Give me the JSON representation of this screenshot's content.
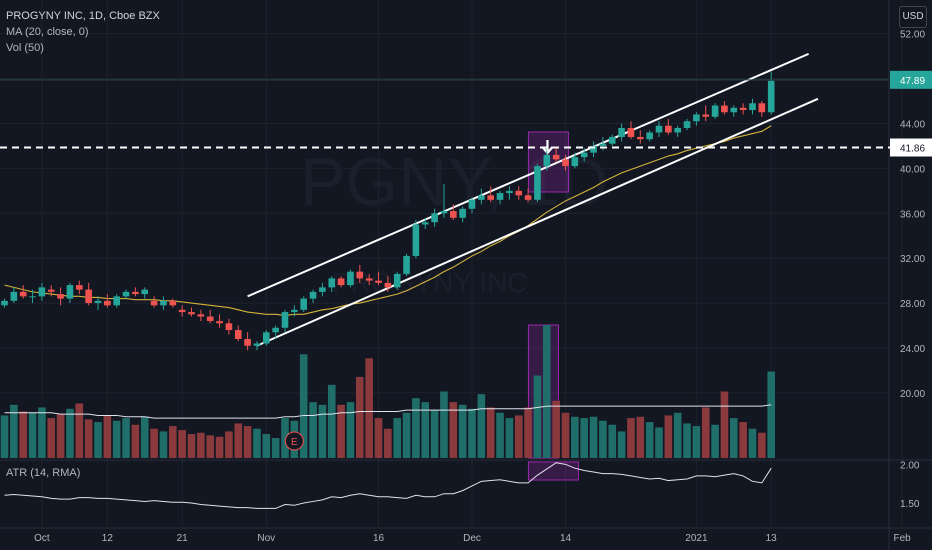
{
  "legend": {
    "title": "PROGYNY INC, 1D, Cboe BZX",
    "ma": "MA (20, close, 0)",
    "vol": "Vol (50)"
  },
  "atr_label": "ATR (14, RMA)",
  "currency": "USD",
  "watermark": {
    "symbol": "PGNY, 1D",
    "name": "PROGYNY INC"
  },
  "earnings_marker": "E",
  "colors": {
    "up": "#26a69a",
    "down": "#ef5350",
    "vol_up": "#1f6e6a",
    "vol_down": "#8a3a3c",
    "ma": "#d4b33a",
    "channel": "#ffffff",
    "highlight": "#9c27b0"
  },
  "price_levels": {
    "current": "47.89",
    "support": "41.86"
  },
  "chart_data": {
    "type": "candlestick",
    "y_ticks": [
      "52.00",
      "48.00",
      "44.00",
      "40.00",
      "36.00",
      "32.00",
      "28.00",
      "24.00",
      "20.00"
    ],
    "y_ticks_values": [
      52,
      48,
      44,
      40,
      36,
      32,
      28,
      24,
      20
    ],
    "ylim": [
      14.2,
      55
    ],
    "atr_ticks": [
      "2.00",
      "1.50"
    ],
    "atr_ticks_values": [
      2.0,
      1.5
    ],
    "atr_ylim": [
      1.28,
      2.03
    ],
    "x_ticks": [
      "Oct",
      "12",
      "21",
      "Nov",
      "16",
      "Dec",
      "14",
      "2021",
      "13",
      "Feb"
    ],
    "x_tick_index": [
      4,
      11,
      19,
      28,
      40,
      50,
      60,
      74,
      82,
      96
    ],
    "candles": [
      [
        27.8,
        28.4,
        27.6,
        28.2
      ],
      [
        28.2,
        29.4,
        28.0,
        29.0
      ],
      [
        29.0,
        29.6,
        28.4,
        28.6
      ],
      [
        28.6,
        29.2,
        28.0,
        28.6
      ],
      [
        28.6,
        29.8,
        28.2,
        29.4
      ],
      [
        29.2,
        29.6,
        28.6,
        29.0
      ],
      [
        28.8,
        29.4,
        27.8,
        28.4
      ],
      [
        28.4,
        29.8,
        28.0,
        29.6
      ],
      [
        29.6,
        30.0,
        28.8,
        29.2
      ],
      [
        29.2,
        29.8,
        27.8,
        28.0
      ],
      [
        28.0,
        28.6,
        27.4,
        28.2
      ],
      [
        28.2,
        28.8,
        27.6,
        27.8
      ],
      [
        27.8,
        28.8,
        27.6,
        28.6
      ],
      [
        28.6,
        29.2,
        28.4,
        29.0
      ],
      [
        29.0,
        29.4,
        28.6,
        28.8
      ],
      [
        28.8,
        29.4,
        28.4,
        29.2
      ],
      [
        28.2,
        28.6,
        27.6,
        27.8
      ],
      [
        27.8,
        28.6,
        27.4,
        28.2
      ],
      [
        28.2,
        28.4,
        27.6,
        27.8
      ],
      [
        27.4,
        27.8,
        26.8,
        27.2
      ],
      [
        27.2,
        27.6,
        26.8,
        27.0
      ],
      [
        27.0,
        27.4,
        26.4,
        26.8
      ],
      [
        26.8,
        27.4,
        26.2,
        26.4
      ],
      [
        26.4,
        27.0,
        25.8,
        26.2
      ],
      [
        26.2,
        26.6,
        25.2,
        25.6
      ],
      [
        25.6,
        26.0,
        24.6,
        24.8
      ],
      [
        24.8,
        25.4,
        23.8,
        24.2
      ],
      [
        24.2,
        24.6,
        23.8,
        24.4
      ],
      [
        24.4,
        25.6,
        24.2,
        25.4
      ],
      [
        25.4,
        26.0,
        24.8,
        25.8
      ],
      [
        25.8,
        27.4,
        25.4,
        27.2
      ],
      [
        27.2,
        27.8,
        26.8,
        27.4
      ],
      [
        27.4,
        28.6,
        27.2,
        28.4
      ],
      [
        28.4,
        29.2,
        28.0,
        29.0
      ],
      [
        29.0,
        29.8,
        28.6,
        29.4
      ],
      [
        29.4,
        30.4,
        29.0,
        30.2
      ],
      [
        30.2,
        30.4,
        29.4,
        29.6
      ],
      [
        29.6,
        31.0,
        29.4,
        30.8
      ],
      [
        30.8,
        31.4,
        29.8,
        30.2
      ],
      [
        30.2,
        30.6,
        29.6,
        30.0
      ],
      [
        30.0,
        30.8,
        29.6,
        29.8
      ],
      [
        29.8,
        30.4,
        29.0,
        29.4
      ],
      [
        29.4,
        30.8,
        29.2,
        30.6
      ],
      [
        30.6,
        32.4,
        30.4,
        32.2
      ],
      [
        32.2,
        35.4,
        32.0,
        35.0
      ],
      [
        35.0,
        35.6,
        34.6,
        35.2
      ],
      [
        35.2,
        36.4,
        34.8,
        36.0
      ],
      [
        36.0,
        38.6,
        35.6,
        36.2
      ],
      [
        36.2,
        36.8,
        35.4,
        35.6
      ],
      [
        35.6,
        36.6,
        35.2,
        36.4
      ],
      [
        36.4,
        37.4,
        36.0,
        37.2
      ],
      [
        37.2,
        38.2,
        36.8,
        37.6
      ],
      [
        37.6,
        38.4,
        37.0,
        37.2
      ],
      [
        37.2,
        38.0,
        36.8,
        37.8
      ],
      [
        37.8,
        38.4,
        37.2,
        38.0
      ],
      [
        38.0,
        38.4,
        37.2,
        37.6
      ],
      [
        37.6,
        38.2,
        37.0,
        37.2
      ],
      [
        37.2,
        40.4,
        37.0,
        40.2
      ],
      [
        40.2,
        41.6,
        39.8,
        41.2
      ],
      [
        41.2,
        41.8,
        40.6,
        40.8
      ],
      [
        40.8,
        41.2,
        39.8,
        40.2
      ],
      [
        40.2,
        41.4,
        40.0,
        41.0
      ],
      [
        41.0,
        41.8,
        40.6,
        41.4
      ],
      [
        41.4,
        42.4,
        41.0,
        42.0
      ],
      [
        42.0,
        42.8,
        41.6,
        42.2
      ],
      [
        42.2,
        43.0,
        42.0,
        42.8
      ],
      [
        42.8,
        44.0,
        42.4,
        43.6
      ],
      [
        43.6,
        44.2,
        42.6,
        42.8
      ],
      [
        42.8,
        43.4,
        42.2,
        42.6
      ],
      [
        42.6,
        43.4,
        42.4,
        43.2
      ],
      [
        43.2,
        44.2,
        42.8,
        43.8
      ],
      [
        43.8,
        44.4,
        43.0,
        43.2
      ],
      [
        43.2,
        43.8,
        42.8,
        43.6
      ],
      [
        43.6,
        44.4,
        43.4,
        44.2
      ],
      [
        44.2,
        45.0,
        43.8,
        44.8
      ],
      [
        44.8,
        45.6,
        44.2,
        44.6
      ],
      [
        44.6,
        45.8,
        44.4,
        45.6
      ],
      [
        45.6,
        46.0,
        44.8,
        45.0
      ],
      [
        45.0,
        45.6,
        44.6,
        45.4
      ],
      [
        45.4,
        45.8,
        44.8,
        45.2
      ],
      [
        45.2,
        46.2,
        44.8,
        45.8
      ],
      [
        45.8,
        46.0,
        44.6,
        45.0
      ],
      [
        45.0,
        48.6,
        44.8,
        47.8
      ]
    ],
    "ma": [
      29.6,
      29.4,
      29.2,
      29.0,
      28.9,
      28.8,
      28.7,
      28.6,
      28.6,
      28.5,
      28.5,
      28.4,
      28.4,
      28.4,
      28.3,
      28.3,
      28.3,
      28.2,
      28.2,
      28.1,
      28.0,
      27.9,
      27.8,
      27.7,
      27.6,
      27.4,
      27.2,
      27.1,
      27.0,
      27.0,
      26.9,
      27.0,
      27.0,
      27.2,
      27.4,
      27.5,
      27.7,
      27.9,
      28.0,
      28.2,
      28.4,
      28.6,
      28.8,
      29.1,
      29.5,
      29.9,
      30.3,
      30.8,
      31.2,
      31.7,
      32.2,
      32.6,
      33.1,
      33.5,
      34.0,
      34.4,
      34.9,
      35.5,
      36.1,
      36.6,
      37.1,
      37.5,
      37.9,
      38.3,
      38.8,
      39.2,
      39.6,
      39.9,
      40.2,
      40.5,
      40.8,
      41.1,
      41.3,
      41.6,
      41.8,
      42.0,
      42.2,
      42.4,
      42.7,
      42.9,
      43.1,
      43.3,
      43.8
    ],
    "volume": [
      0.32,
      0.4,
      0.35,
      0.34,
      0.38,
      0.3,
      0.33,
      0.37,
      0.41,
      0.29,
      0.27,
      0.32,
      0.28,
      0.3,
      0.25,
      0.31,
      0.22,
      0.2,
      0.24,
      0.21,
      0.18,
      0.19,
      0.17,
      0.16,
      0.2,
      0.26,
      0.24,
      0.22,
      0.18,
      0.15,
      0.3,
      0.28,
      0.78,
      0.42,
      0.4,
      0.55,
      0.4,
      0.42,
      0.61,
      0.75,
      0.3,
      0.22,
      0.3,
      0.34,
      0.45,
      0.42,
      0.36,
      0.5,
      0.42,
      0.4,
      0.37,
      0.48,
      0.38,
      0.34,
      0.3,
      0.32,
      0.38,
      0.62,
      1.0,
      0.43,
      0.34,
      0.31,
      0.3,
      0.31,
      0.28,
      0.25,
      0.2,
      0.3,
      0.31,
      0.27,
      0.23,
      0.32,
      0.34,
      0.26,
      0.24,
      0.38,
      0.25,
      0.5,
      0.3,
      0.27,
      0.22,
      0.19,
      0.65
    ],
    "volume_ma": [
      0.34,
      0.34,
      0.34,
      0.34,
      0.34,
      0.34,
      0.33,
      0.33,
      0.33,
      0.33,
      0.32,
      0.32,
      0.32,
      0.31,
      0.31,
      0.31,
      0.3,
      0.3,
      0.3,
      0.3,
      0.3,
      0.3,
      0.3,
      0.3,
      0.3,
      0.3,
      0.3,
      0.3,
      0.3,
      0.3,
      0.31,
      0.31,
      0.32,
      0.32,
      0.33,
      0.33,
      0.34,
      0.34,
      0.35,
      0.35,
      0.35,
      0.35,
      0.35,
      0.36,
      0.36,
      0.36,
      0.36,
      0.36,
      0.36,
      0.36,
      0.36,
      0.37,
      0.37,
      0.37,
      0.37,
      0.37,
      0.37,
      0.38,
      0.39,
      0.39,
      0.39,
      0.39,
      0.39,
      0.39,
      0.39,
      0.39,
      0.39,
      0.39,
      0.39,
      0.39,
      0.39,
      0.39,
      0.39,
      0.39,
      0.39,
      0.39,
      0.39,
      0.39,
      0.39,
      0.39,
      0.39,
      0.39,
      0.4
    ],
    "atr": [
      1.6,
      1.61,
      1.6,
      1.59,
      1.58,
      1.56,
      1.55,
      1.55,
      1.57,
      1.57,
      1.56,
      1.56,
      1.55,
      1.54,
      1.53,
      1.52,
      1.53,
      1.52,
      1.51,
      1.51,
      1.5,
      1.48,
      1.47,
      1.46,
      1.45,
      1.44,
      1.44,
      1.43,
      1.43,
      1.43,
      1.48,
      1.47,
      1.5,
      1.52,
      1.54,
      1.58,
      1.57,
      1.6,
      1.62,
      1.6,
      1.58,
      1.58,
      1.57,
      1.56,
      1.6,
      1.58,
      1.58,
      1.62,
      1.62,
      1.66,
      1.72,
      1.78,
      1.79,
      1.8,
      1.78,
      1.76,
      1.76,
      1.86,
      1.94,
      2.02,
      2.0,
      1.95,
      1.92,
      1.9,
      1.88,
      1.88,
      1.87,
      1.85,
      1.83,
      1.81,
      1.82,
      1.79,
      1.8,
      1.81,
      1.85,
      1.85,
      1.84,
      1.86,
      1.88,
      1.85,
      1.78,
      1.76,
      1.95
    ],
    "channel": [
      {
        "from_index": 26,
        "from_price": 28.6,
        "to_index": 86,
        "to_price": 50.2
      },
      {
        "from_index": 27,
        "from_price": 24.2,
        "to_index": 87,
        "to_price": 46.2
      }
    ]
  }
}
